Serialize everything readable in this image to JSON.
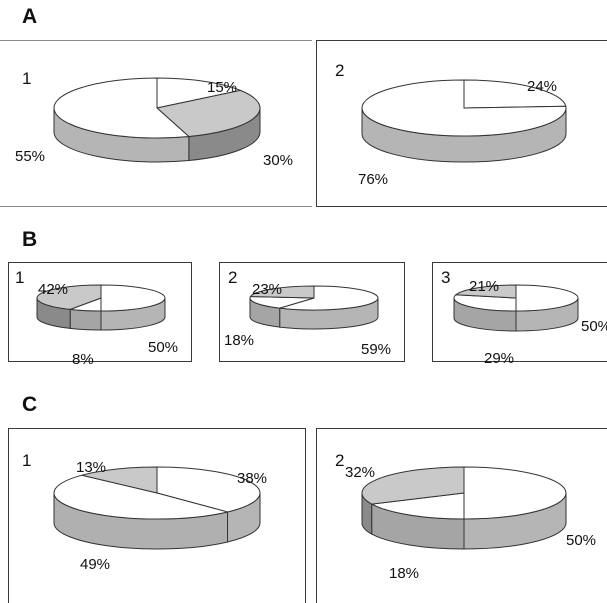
{
  "sections": [
    {
      "letter": "A",
      "charts": [
        {
          "number": "1",
          "type": "pie",
          "slices": [
            {
              "value": 15,
              "label": "15%",
              "fill": "#ffffff",
              "side": "#bcbcbc"
            },
            {
              "value": 30,
              "label": "30%",
              "fill": "#c9c9c9",
              "side": "#8a8a8a"
            },
            {
              "value": 55,
              "label": "55%",
              "fill": "#ffffff",
              "side": "#b5b5b5"
            }
          ]
        },
        {
          "number": "2",
          "type": "pie",
          "slices": [
            {
              "value": 24,
              "label": "24%",
              "fill": "#ffffff",
              "side": "#bcbcbc"
            },
            {
              "value": 76,
              "label": "76%",
              "fill": "#ffffff",
              "side": "#b5b5b5"
            }
          ]
        }
      ]
    },
    {
      "letter": "B",
      "charts": [
        {
          "number": "1",
          "type": "pie",
          "slices": [
            {
              "value": 50,
              "label": "50%",
              "fill": "#ffffff",
              "side": "#b5b5b5"
            },
            {
              "value": 8,
              "label": "8%",
              "fill": "#ffffff",
              "side": "#a5a5a5"
            },
            {
              "value": 42,
              "label": "42%",
              "fill": "#c9c9c9",
              "side": "#8a8a8a"
            }
          ]
        },
        {
          "number": "2",
          "type": "pie",
          "slices": [
            {
              "value": 59,
              "label": "59%",
              "fill": "#ffffff",
              "side": "#b5b5b5"
            },
            {
              "value": 18,
              "label": "18%",
              "fill": "#ffffff",
              "side": "#a5a5a5"
            },
            {
              "value": 23,
              "label": "23%",
              "fill": "#c9c9c9",
              "side": "#8a8a8a"
            }
          ]
        },
        {
          "number": "3",
          "type": "pie",
          "slices": [
            {
              "value": 50,
              "label": "50%",
              "fill": "#ffffff",
              "side": "#b5b5b5"
            },
            {
              "value": 29,
              "label": "29%",
              "fill": "#ffffff",
              "side": "#a5a5a5"
            },
            {
              "value": 21,
              "label": "21%",
              "fill": "#c9c9c9",
              "side": "#8a8a8a"
            }
          ]
        }
      ]
    },
    {
      "letter": "C",
      "charts": [
        {
          "number": "1",
          "type": "pie",
          "slices": [
            {
              "value": 38,
              "label": "38%",
              "fill": "#ffffff",
              "side": "#b5b5b5"
            },
            {
              "value": 49,
              "label": "49%",
              "fill": "#ffffff",
              "side": "#b0b0b0"
            },
            {
              "value": 13,
              "label": "13%",
              "fill": "#c9c9c9",
              "side": "#8a8a8a"
            }
          ]
        },
        {
          "number": "2",
          "type": "pie",
          "slices": [
            {
              "value": 50,
              "label": "50%",
              "fill": "#ffffff",
              "side": "#b5b5b5"
            },
            {
              "value": 18,
              "label": "18%",
              "fill": "#ffffff",
              "side": "#a5a5a5"
            },
            {
              "value": 32,
              "label": "32%",
              "fill": "#c9c9c9",
              "side": "#8a8a8a"
            }
          ]
        }
      ]
    }
  ],
  "chart_data": [
    {
      "type": "pie",
      "panel": "A1",
      "values": [
        15,
        30,
        55
      ]
    },
    {
      "type": "pie",
      "panel": "A2",
      "values": [
        24,
        76
      ]
    },
    {
      "type": "pie",
      "panel": "B1",
      "values": [
        50,
        8,
        42
      ]
    },
    {
      "type": "pie",
      "panel": "B2",
      "values": [
        59,
        18,
        23
      ]
    },
    {
      "type": "pie",
      "panel": "B3",
      "values": [
        50,
        29,
        21
      ]
    },
    {
      "type": "pie",
      "panel": "C1",
      "values": [
        38,
        49,
        13
      ]
    },
    {
      "type": "pie",
      "panel": "C2",
      "values": [
        50,
        18,
        32
      ]
    }
  ]
}
